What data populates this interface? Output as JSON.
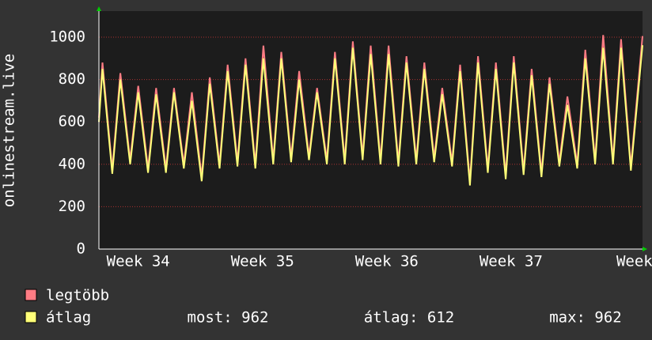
{
  "chart_data": {
    "type": "line",
    "y_label": "onlinestream.live",
    "x": [
      0,
      0.2,
      0.75,
      1.2,
      1.75,
      2.2,
      2.75,
      3.2,
      3.75,
      4.2,
      4.75,
      5.2,
      5.75,
      6.2,
      6.75,
      7.2,
      7.75,
      8.2,
      8.75,
      9.2,
      9.75,
      10.2,
      10.75,
      11.2,
      11.75,
      12.2,
      12.75,
      13.2,
      13.75,
      14.2,
      14.75,
      15.2,
      15.75,
      16.2,
      16.75,
      17.2,
      17.75,
      18.2,
      18.75,
      19.2,
      19.75,
      20.2,
      20.75,
      21.2,
      21.75,
      22.2,
      22.75,
      23.2,
      23.75,
      24.2,
      24.75,
      25.2,
      25.75,
      26.2,
      26.75,
      27.2,
      27.75,
      28.2,
      28.75,
      29.2,
      29.75,
      30.4
    ],
    "series": [
      {
        "name": "legtöbb",
        "color": "#ff7c84",
        "values": [
          620,
          880,
          375,
          830,
          420,
          770,
          380,
          760,
          380,
          760,
          400,
          740,
          340,
          810,
          400,
          870,
          410,
          900,
          400,
          960,
          420,
          930,
          430,
          840,
          440,
          760,
          420,
          930,
          420,
          980,
          440,
          960,
          420,
          960,
          410,
          910,
          420,
          880,
          430,
          760,
          410,
          870,
          320,
          910,
          380,
          880,
          350,
          910,
          370,
          850,
          360,
          810,
          410,
          720,
          400,
          940,
          420,
          1010,
          420,
          990,
          390,
          1005
        ]
      },
      {
        "name": "átlag",
        "color": "#ffff78",
        "values": [
          600,
          850,
          355,
          800,
          400,
          740,
          360,
          730,
          360,
          740,
          380,
          700,
          320,
          780,
          380,
          840,
          390,
          870,
          380,
          900,
          400,
          900,
          410,
          800,
          420,
          740,
          400,
          900,
          400,
          950,
          420,
          920,
          400,
          920,
          390,
          880,
          400,
          850,
          410,
          730,
          390,
          840,
          300,
          880,
          360,
          850,
          330,
          880,
          350,
          820,
          340,
          780,
          390,
          680,
          380,
          900,
          400,
          950,
          400,
          950,
          370,
          962
        ]
      }
    ],
    "stats": [
      "most: 962",
      "átlag: 612",
      "max: 962"
    ],
    "xlim": [
      0,
      30.4
    ],
    "xticks": [
      {
        "value": 2.2,
        "label": "Week 34"
      },
      {
        "value": 9.15,
        "label": "Week 35"
      },
      {
        "value": 16.1,
        "label": "Week 36"
      },
      {
        "value": 23.05,
        "label": "Week 37"
      },
      {
        "value": 29.95,
        "label": "Week"
      }
    ],
    "ylim": [
      0,
      1123
    ],
    "yticks": [
      0,
      200,
      400,
      600,
      800,
      1000
    ],
    "grid": true
  }
}
